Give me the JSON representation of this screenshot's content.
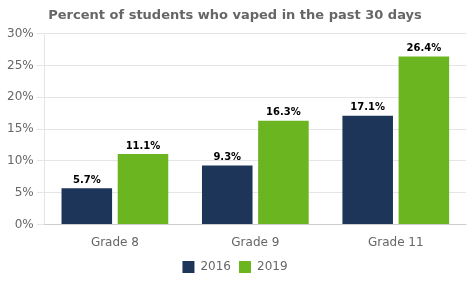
{
  "chart_data": {
    "type": "bar",
    "title": "Percent of students who vaped in the past 30 days",
    "categories": [
      "Grade 8",
      "Grade 9",
      "Grade 11"
    ],
    "series": [
      {
        "name": "2016",
        "color": "#1c3558",
        "values": [
          5.7,
          9.3,
          17.1
        ],
        "value_labels": [
          "5.7%",
          "9.3%",
          "17.1%"
        ]
      },
      {
        "name": "2019",
        "color": "#6ab520",
        "values": [
          11.1,
          16.3,
          26.4
        ],
        "value_labels": [
          "11.1%",
          "16.3%",
          "26.4%"
        ]
      }
    ],
    "ylim": [
      0,
      30
    ],
    "yticks": [
      {
        "value": 0,
        "label": "0%"
      },
      {
        "value": 5,
        "label": "5%"
      },
      {
        "value": 10,
        "label": "10%"
      },
      {
        "value": 15,
        "label": "15%"
      },
      {
        "value": 20,
        "label": "20%"
      },
      {
        "value": 25,
        "label": "25%"
      },
      {
        "value": 30,
        "label": "30%"
      }
    ],
    "grid": "y",
    "legend": "bottom",
    "data_labels": true
  }
}
